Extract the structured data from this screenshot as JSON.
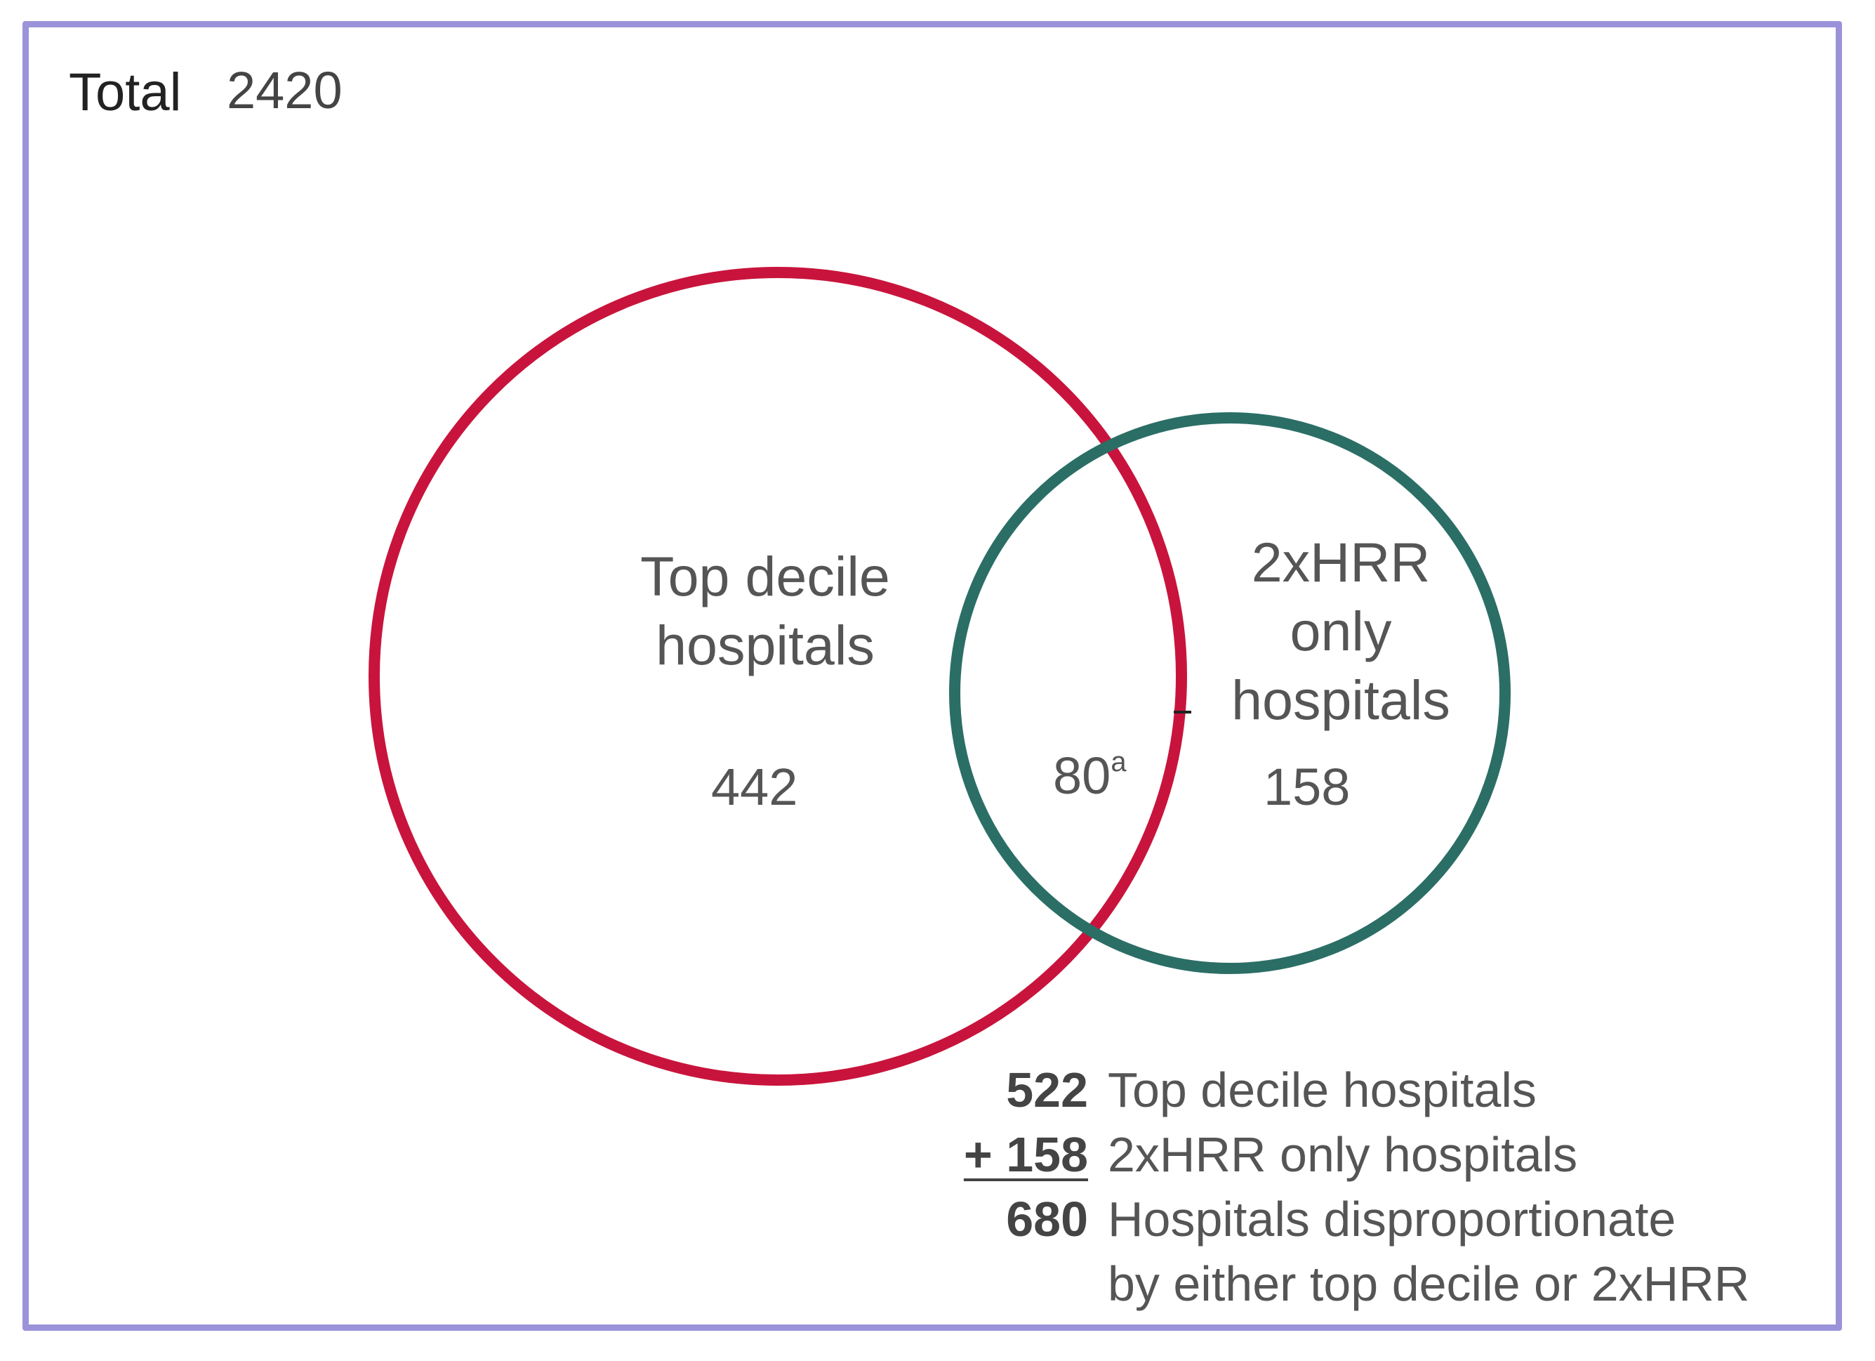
{
  "total": {
    "label": "Total",
    "value": "2420"
  },
  "sets": {
    "a": {
      "label_line1": "Top decile",
      "label_line2": "hospitals",
      "only_count": "442",
      "color": "#c8143c"
    },
    "b": {
      "label_line1": "2xHRR",
      "label_line2": "only",
      "label_line3": "hospitals",
      "only_count": "158",
      "color": "#2b6e66"
    },
    "intersection": {
      "count": "80",
      "footnote_mark": "a"
    }
  },
  "summary": {
    "row1": {
      "num": "522",
      "text": "Top decile hospitals"
    },
    "row2": {
      "num": "+ 158",
      "text": "2xHRR only hospitals"
    },
    "row3": {
      "num": "680",
      "text": "Hospitals disproportionate"
    },
    "row4": {
      "text": "by either top decile or 2xHRR"
    }
  },
  "frame_color": "#9b93d9"
}
